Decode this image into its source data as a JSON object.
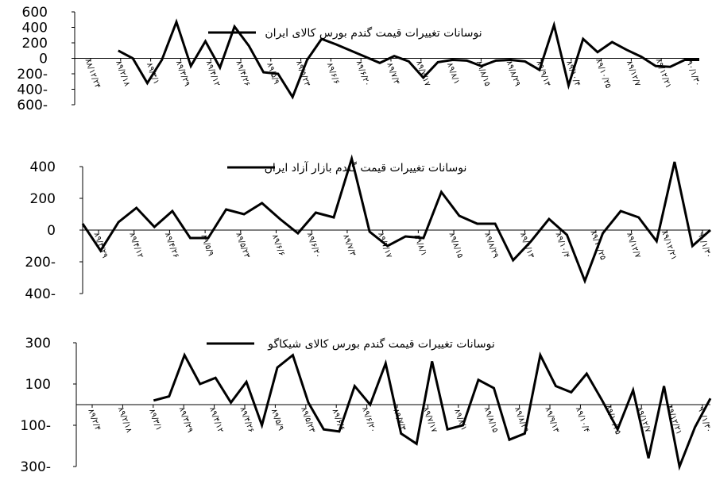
{
  "chart_data": [
    {
      "type": "line",
      "legend_position": "top-center",
      "grid": false,
      "ylim": [
        -600,
        600
      ],
      "yticks": [
        "600",
        "400",
        "200",
        "0",
        "200-",
        "400-",
        "600-"
      ],
      "xtick_labels": [
        "۸۸/۱۲/۲۴",
        "۸۹/۲/۱۸",
        "۸۹/۳/۱",
        "۸۹/۳/۲۹",
        "۸۹/۴/۱۲",
        "۸۹/۴/۲۶",
        "۸۹/۵/۹",
        "۸۹/۵/۲۳",
        "۸۹/۶/۶",
        "۸۹/۶/۲۰",
        "۸۹/۷/۳",
        "۸۹/۷/۱۷",
        "۸۹/۸/۱",
        "۸۹/۸/۱۵",
        "۸۹/۸/۲۹",
        "۸۹/۹/۱۳",
        "۸۹/۱۰/۴",
        "۸۹/۱۰/۲۵",
        "۸۹/۱۲/۷",
        "۸۹/۱۲/۲۱",
        "۹۰/۱/۳۰"
      ],
      "series": [
        {
          "name": "نوسانات تغییرات قیمت گندم بورس کالای ایران",
          "values": [
            null,
            null,
            null,
            100,
            0,
            -320,
            -20,
            470,
            -100,
            220,
            -120,
            410,
            160,
            -180,
            -200,
            -500,
            -20,
            250,
            180,
            100,
            20,
            -60,
            30,
            -40,
            -250,
            -50,
            -20,
            -30,
            -100,
            -30,
            -20,
            -40,
            -150,
            430,
            -350,
            250,
            80,
            210,
            110,
            20,
            -100,
            -110,
            -20,
            -20
          ]
        }
      ]
    },
    {
      "type": "line",
      "legend_position": "top-center",
      "grid": false,
      "ylim": [
        -400,
        400
      ],
      "yticks": [
        "400",
        "200",
        "0",
        "200-",
        "400-"
      ],
      "xtick_labels": [
        "۸۹/۳/۲۹",
        "۸۹/۴/۱۲",
        "۸۹/۴/۲۶",
        "۸۹/۵/۹",
        "۸۹/۵/۲۳",
        "۸۹/۶/۶",
        "۸۹/۶/۲۰",
        "۸۹/۷/۳",
        "۸۹/۷/۱۷",
        "۸۹/۸/۱",
        "۸۹/۸/۱۵",
        "۸۹/۸/۲۹",
        "۸۹/۹/۱۳",
        "۸۹/۱۰/۴",
        "۸۹/۱۰/۲۵",
        "۸۹/۱۲/۷",
        "۸۹/۱۲/۲۱",
        "۹۰/۱/۳۰"
      ],
      "series": [
        {
          "name": "نوسانات تغییرات قیمت گندم بازار آزاد ایران",
          "values": [
            40,
            -130,
            50,
            140,
            20,
            120,
            -50,
            -50,
            130,
            100,
            170,
            70,
            -20,
            110,
            80,
            450,
            -10,
            -100,
            -40,
            -50,
            240,
            90,
            40,
            40,
            -190,
            -70,
            70,
            -30,
            -320,
            -20,
            120,
            80,
            -70,
            430,
            -100,
            0
          ]
        }
      ]
    },
    {
      "type": "line",
      "legend_position": "top-center",
      "grid": false,
      "ylim": [
        -300,
        300
      ],
      "yticks": [
        "300",
        "100",
        "100-",
        "300-"
      ],
      "xtick_labels": [
        "۸۹/۲/۴",
        "۸۹/۲/۱۸",
        "۸۹/۳/۱",
        "۸۹/۳/۲۹",
        "۸۹/۴/۱۲",
        "۸۹/۴/۲۶",
        "۸۹/۵/۹",
        "۸۹/۵/۲۳",
        "۸۹/۶/۶",
        "۸۹/۶/۲۰",
        "۸۹/۷/۳",
        "۸۹/۷/۱۷",
        "۸۹/۸/۱",
        "۸۹/۸/۱۵",
        "۸۹/۸/۲۹",
        "۸۹/۹/۱۳",
        "۸۹/۱۰/۴",
        "۸۹/۱۰/۲۵",
        "۸۹/۱۲/۷",
        "۸۹/۱۲/۲۱",
        "۹۰/۱/۳۰"
      ],
      "series": [
        {
          "name": "نوسانات تغییرات قیمت گندم بورس کالای شیکاگو",
          "values": [
            null,
            null,
            null,
            null,
            null,
            20,
            40,
            240,
            100,
            130,
            10,
            110,
            -100,
            180,
            240,
            10,
            -120,
            -130,
            90,
            0,
            200,
            -140,
            -190,
            210,
            -120,
            -100,
            120,
            80,
            -170,
            -140,
            240,
            90,
            60,
            150,
            20,
            -120,
            70,
            -260,
            90,
            -300,
            -110,
            30
          ]
        }
      ]
    }
  ]
}
